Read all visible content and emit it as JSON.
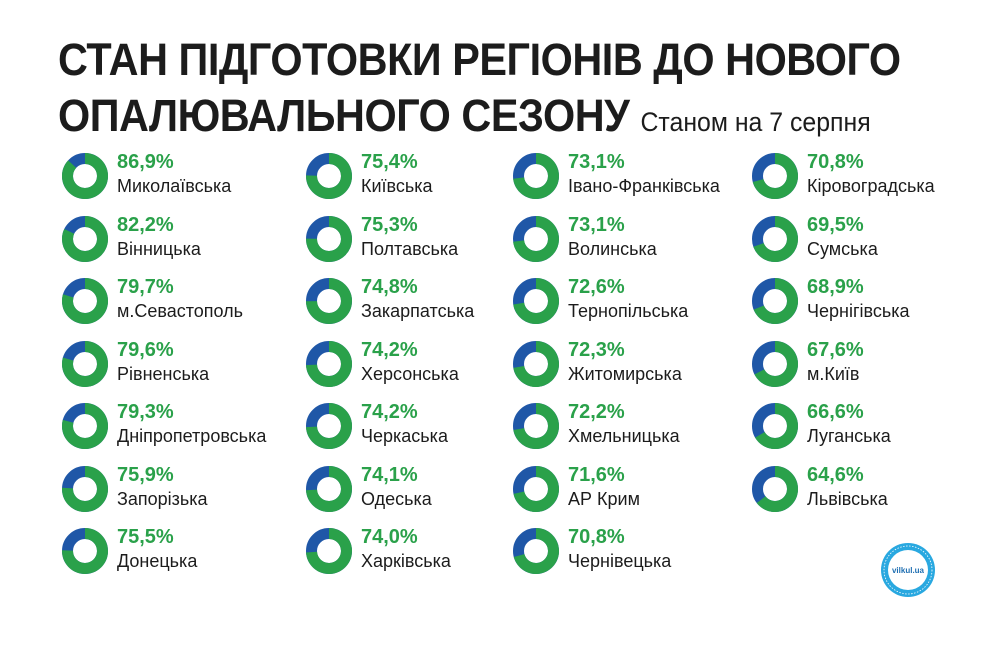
{
  "title_line1": "СТАН ПІДГОТОВКИ РЕГІОНІВ ДО НОВОГО",
  "title_line2": "ОПАЛЮВАЛЬНОГО СЕЗОНУ",
  "subtitle": "Станом на 7 серпня",
  "logo_text": "vilkul.ua",
  "colors": {
    "done": "#2aa14a",
    "remaining": "#1f57a7",
    "text": "#1c1c1c"
  },
  "chart_data": {
    "type": "pie",
    "unit": "%",
    "columns": [
      [
        {
          "label": "Миколаївська",
          "value": 86.9,
          "display": "86,9%"
        },
        {
          "label": "Вінницька",
          "value": 82.2,
          "display": "82,2%"
        },
        {
          "label": "м.Севастополь",
          "value": 79.7,
          "display": "79,7%"
        },
        {
          "label": "Рівненська",
          "value": 79.6,
          "display": "79,6%"
        },
        {
          "label": "Дніпропетровська",
          "value": 79.3,
          "display": "79,3%"
        },
        {
          "label": "Запорізька",
          "value": 75.9,
          "display": "75,9%"
        },
        {
          "label": "Донецька",
          "value": 75.5,
          "display": "75,5%"
        }
      ],
      [
        {
          "label": "Київська",
          "value": 75.4,
          "display": "75,4%"
        },
        {
          "label": "Полтавська",
          "value": 75.3,
          "display": "75,3%"
        },
        {
          "label": "Закарпатська",
          "value": 74.8,
          "display": "74,8%"
        },
        {
          "label": "Херсонська",
          "value": 74.2,
          "display": "74,2%"
        },
        {
          "label": "Черкаська",
          "value": 74.2,
          "display": "74,2%"
        },
        {
          "label": "Одеська",
          "value": 74.1,
          "display": "74,1%"
        },
        {
          "label": "Харківська",
          "value": 74.0,
          "display": "74,0%"
        }
      ],
      [
        {
          "label": "Івано-Франківська",
          "value": 73.1,
          "display": "73,1%"
        },
        {
          "label": "Волинська",
          "value": 73.1,
          "display": "73,1%"
        },
        {
          "label": "Тернопільська",
          "value": 72.6,
          "display": "72,6%"
        },
        {
          "label": "Житомирська",
          "value": 72.3,
          "display": "72,3%"
        },
        {
          "label": "Хмельницька",
          "value": 72.2,
          "display": "72,2%"
        },
        {
          "label": "АР Крим",
          "value": 71.6,
          "display": "71,6%"
        },
        {
          "label": "Чернівецька",
          "value": 70.8,
          "display": "70,8%"
        }
      ],
      [
        {
          "label": "Кіровоградська",
          "value": 70.8,
          "display": "70,8%"
        },
        {
          "label": "Сумська",
          "value": 69.5,
          "display": "69,5%"
        },
        {
          "label": "Чернігівська",
          "value": 68.9,
          "display": "68,9%"
        },
        {
          "label": "м.Київ",
          "value": 67.6,
          "display": "67,6%"
        },
        {
          "label": "Луганська",
          "value": 66.6,
          "display": "66,6%"
        },
        {
          "label": "Львівська",
          "value": 64.6,
          "display": "64,6%"
        }
      ]
    ]
  }
}
